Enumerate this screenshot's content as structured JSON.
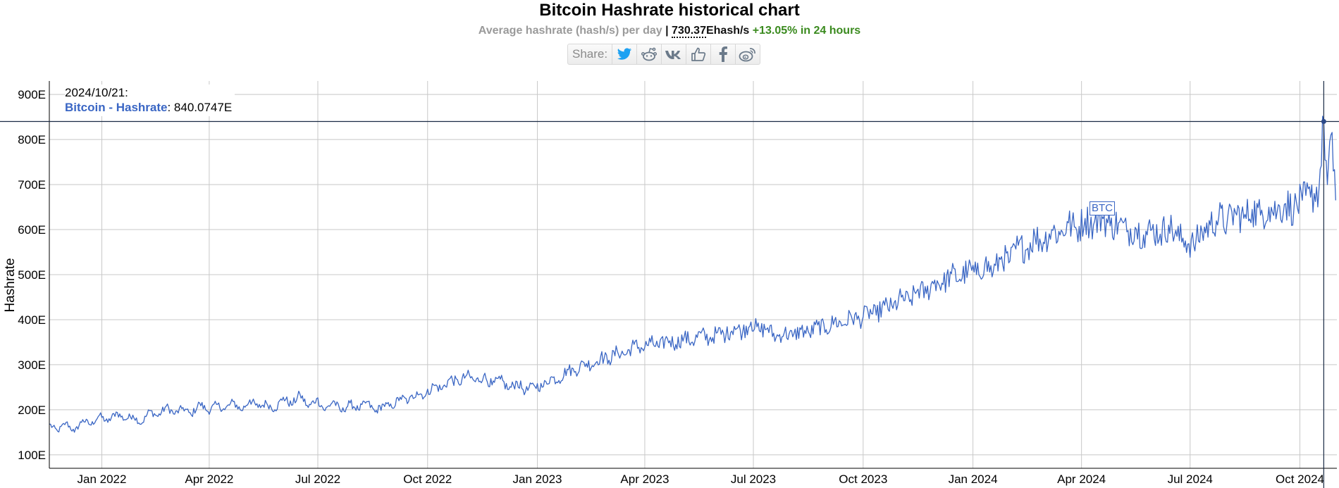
{
  "header": {
    "title": "Bitcoin Hashrate historical chart",
    "subtitle_label": "Average hashrate (hash/s) per day",
    "separator": "|",
    "current_value": "730.37",
    "current_unit": "Ehash/s",
    "change": "+13.05% in 24 hours"
  },
  "share": {
    "label": "Share:",
    "buttons": [
      {
        "name": "twitter-icon",
        "glyph": "twitter"
      },
      {
        "name": "reddit-icon",
        "glyph": "reddit"
      },
      {
        "name": "vk-icon",
        "glyph": "vk"
      },
      {
        "name": "like-icon",
        "glyph": "like"
      },
      {
        "name": "facebook-icon",
        "glyph": "facebook"
      },
      {
        "name": "weibo-icon",
        "glyph": "weibo"
      }
    ],
    "colors": {
      "twitter": "#1da1f2",
      "icons": "#6b7a8a"
    }
  },
  "tooltip": {
    "date": "2024/10/21:",
    "series": "Bitcoin - Hashrate",
    "value": ": 840.0747E"
  },
  "annotation": {
    "label": "BTC"
  },
  "chart_data": {
    "type": "line",
    "title": "Bitcoin Hashrate historical chart",
    "ylabel": "Hashrate",
    "xlabel": "",
    "xlim": [
      "2021-11-18",
      "2024-11-01"
    ],
    "ylim": [
      70,
      930
    ],
    "y_ticks": [
      100,
      200,
      300,
      400,
      500,
      600,
      700,
      800,
      900
    ],
    "y_tick_labels": [
      "100E",
      "200E",
      "300E",
      "400E",
      "500E",
      "600E",
      "700E",
      "800E",
      "900E"
    ],
    "x_ticks": [
      "2022-01-01",
      "2022-04-01",
      "2022-07-01",
      "2022-10-01",
      "2023-01-01",
      "2023-04-01",
      "2023-07-01",
      "2023-10-01",
      "2024-01-01",
      "2024-04-01",
      "2024-07-01",
      "2024-10-01"
    ],
    "x_tick_labels": [
      "Jan 2022",
      "Apr 2022",
      "Jul 2022",
      "Oct 2022",
      "Jan 2023",
      "Apr 2023",
      "Jul 2023",
      "Oct 2023",
      "Jan 2024",
      "Apr 2024",
      "Jul 2024",
      "Oct 2024"
    ],
    "grid": true,
    "line_color": "#3a66c4",
    "crosshair": {
      "x": "2024-10-21",
      "y": 840.0747
    },
    "series": [
      {
        "name": "Bitcoin - Hashrate",
        "points": [
          [
            "2021-11-18",
            168
          ],
          [
            "2021-11-25",
            152
          ],
          [
            "2021-12-02",
            172
          ],
          [
            "2021-12-09",
            150
          ],
          [
            "2021-12-16",
            178
          ],
          [
            "2021-12-23",
            166
          ],
          [
            "2021-12-30",
            188
          ],
          [
            "2022-01-06",
            172
          ],
          [
            "2022-01-13",
            195
          ],
          [
            "2022-01-20",
            178
          ],
          [
            "2022-01-27",
            188
          ],
          [
            "2022-02-03",
            168
          ],
          [
            "2022-02-10",
            198
          ],
          [
            "2022-02-17",
            185
          ],
          [
            "2022-02-24",
            208
          ],
          [
            "2022-03-03",
            190
          ],
          [
            "2022-03-10",
            205
          ],
          [
            "2022-03-17",
            188
          ],
          [
            "2022-03-24",
            215
          ],
          [
            "2022-03-31",
            196
          ],
          [
            "2022-04-07",
            212
          ],
          [
            "2022-04-14",
            200
          ],
          [
            "2022-04-21",
            218
          ],
          [
            "2022-04-28",
            198
          ],
          [
            "2022-05-05",
            222
          ],
          [
            "2022-05-12",
            205
          ],
          [
            "2022-05-19",
            215
          ],
          [
            "2022-05-26",
            200
          ],
          [
            "2022-06-02",
            228
          ],
          [
            "2022-06-09",
            210
          ],
          [
            "2022-06-16",
            235
          ],
          [
            "2022-06-23",
            205
          ],
          [
            "2022-06-30",
            225
          ],
          [
            "2022-07-07",
            198
          ],
          [
            "2022-07-14",
            220
          ],
          [
            "2022-07-21",
            195
          ],
          [
            "2022-07-28",
            215
          ],
          [
            "2022-08-04",
            200
          ],
          [
            "2022-08-11",
            218
          ],
          [
            "2022-08-18",
            195
          ],
          [
            "2022-08-25",
            212
          ],
          [
            "2022-09-01",
            205
          ],
          [
            "2022-09-08",
            228
          ],
          [
            "2022-09-15",
            218
          ],
          [
            "2022-09-22",
            240
          ],
          [
            "2022-09-29",
            230
          ],
          [
            "2022-10-06",
            255
          ],
          [
            "2022-10-13",
            245
          ],
          [
            "2022-10-20",
            270
          ],
          [
            "2022-10-27",
            258
          ],
          [
            "2022-11-03",
            278
          ],
          [
            "2022-11-10",
            262
          ],
          [
            "2022-11-17",
            275
          ],
          [
            "2022-11-24",
            255
          ],
          [
            "2022-12-01",
            268
          ],
          [
            "2022-12-08",
            245
          ],
          [
            "2022-12-15",
            262
          ],
          [
            "2022-12-22",
            240
          ],
          [
            "2022-12-29",
            255
          ],
          [
            "2023-01-05",
            250
          ],
          [
            "2023-01-12",
            272
          ],
          [
            "2023-01-19",
            265
          ],
          [
            "2023-01-26",
            290
          ],
          [
            "2023-02-02",
            285
          ],
          [
            "2023-02-09",
            305
          ],
          [
            "2023-02-16",
            298
          ],
          [
            "2023-02-23",
            318
          ],
          [
            "2023-03-02",
            310
          ],
          [
            "2023-03-09",
            330
          ],
          [
            "2023-03-16",
            322
          ],
          [
            "2023-03-23",
            345
          ],
          [
            "2023-03-30",
            335
          ],
          [
            "2023-04-06",
            350
          ],
          [
            "2023-04-13",
            338
          ],
          [
            "2023-04-20",
            358
          ],
          [
            "2023-04-27",
            345
          ],
          [
            "2023-05-04",
            362
          ],
          [
            "2023-05-11",
            350
          ],
          [
            "2023-05-18",
            370
          ],
          [
            "2023-05-25",
            355
          ],
          [
            "2023-06-01",
            372
          ],
          [
            "2023-06-08",
            365
          ],
          [
            "2023-06-15",
            385
          ],
          [
            "2023-06-22",
            372
          ],
          [
            "2023-06-29",
            395
          ],
          [
            "2023-07-06",
            375
          ],
          [
            "2023-07-13",
            382
          ],
          [
            "2023-07-20",
            360
          ],
          [
            "2023-07-27",
            372
          ],
          [
            "2023-08-03",
            362
          ],
          [
            "2023-08-10",
            378
          ],
          [
            "2023-08-17",
            368
          ],
          [
            "2023-08-24",
            388
          ],
          [
            "2023-08-31",
            378
          ],
          [
            "2023-09-07",
            398
          ],
          [
            "2023-09-14",
            388
          ],
          [
            "2023-09-21",
            408
          ],
          [
            "2023-09-28",
            398
          ],
          [
            "2023-10-05",
            418
          ],
          [
            "2023-10-12",
            410
          ],
          [
            "2023-10-19",
            432
          ],
          [
            "2023-10-26",
            425
          ],
          [
            "2023-11-02",
            450
          ],
          [
            "2023-11-09",
            440
          ],
          [
            "2023-11-16",
            468
          ],
          [
            "2023-11-23",
            458
          ],
          [
            "2023-11-30",
            488
          ],
          [
            "2023-12-07",
            478
          ],
          [
            "2023-12-14",
            502
          ],
          [
            "2023-12-21",
            490
          ],
          [
            "2023-12-28",
            512
          ],
          [
            "2024-01-04",
            500
          ],
          [
            "2024-01-11",
            525
          ],
          [
            "2024-01-18",
            505
          ],
          [
            "2024-01-25",
            540
          ],
          [
            "2024-02-01",
            530
          ],
          [
            "2024-02-08",
            565
          ],
          [
            "2024-02-15",
            555
          ],
          [
            "2024-02-22",
            585
          ],
          [
            "2024-02-29",
            572
          ],
          [
            "2024-03-07",
            600
          ],
          [
            "2024-03-14",
            588
          ],
          [
            "2024-03-21",
            615
          ],
          [
            "2024-03-28",
            598
          ],
          [
            "2024-04-04",
            625
          ],
          [
            "2024-04-11",
            610
          ],
          [
            "2024-04-18",
            630
          ],
          [
            "2024-04-25",
            608
          ],
          [
            "2024-05-02",
            615
          ],
          [
            "2024-05-09",
            595
          ],
          [
            "2024-05-16",
            605
          ],
          [
            "2024-05-23",
            588
          ],
          [
            "2024-05-30",
            600
          ],
          [
            "2024-06-06",
            590
          ],
          [
            "2024-06-13",
            610
          ],
          [
            "2024-06-20",
            585
          ],
          [
            "2024-06-27",
            575
          ],
          [
            "2024-07-04",
            565
          ],
          [
            "2024-07-11",
            595
          ],
          [
            "2024-07-18",
            610
          ],
          [
            "2024-07-25",
            628
          ],
          [
            "2024-08-01",
            615
          ],
          [
            "2024-08-08",
            638
          ],
          [
            "2024-08-15",
            625
          ],
          [
            "2024-08-22",
            645
          ],
          [
            "2024-08-29",
            632
          ],
          [
            "2024-09-05",
            650
          ],
          [
            "2024-09-12",
            640
          ],
          [
            "2024-09-19",
            658
          ],
          [
            "2024-09-26",
            645
          ],
          [
            "2024-10-03",
            665
          ],
          [
            "2024-10-10",
            672
          ],
          [
            "2024-10-17",
            690
          ],
          [
            "2024-10-21",
            840
          ],
          [
            "2024-10-24",
            700
          ],
          [
            "2024-10-27",
            810
          ],
          [
            "2024-10-29",
            730
          ],
          [
            "2024-10-31",
            665
          ]
        ]
      }
    ]
  }
}
